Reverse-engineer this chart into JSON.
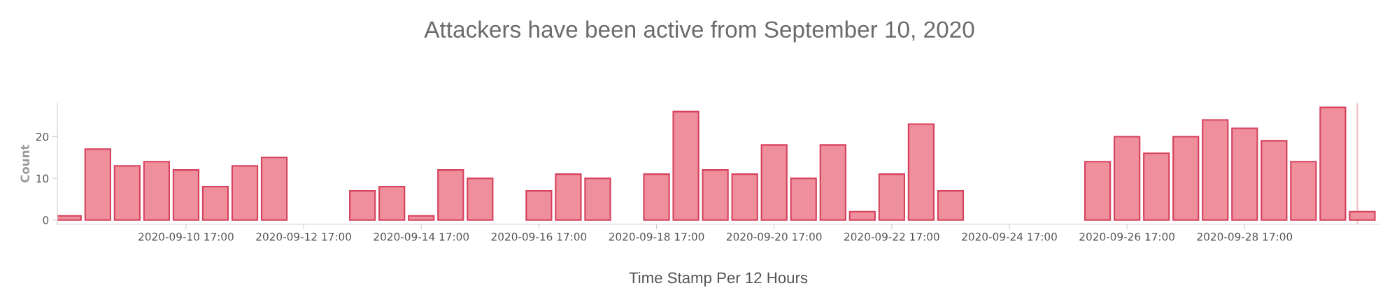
{
  "chart_data": {
    "type": "bar",
    "title": "Attackers have been active from September 10, 2020",
    "xlabel": "Time Stamp Per 12 Hours",
    "ylabel": "Count",
    "x": [
      "2020-09-08T17:00",
      "2020-09-09T05:00",
      "2020-09-09T17:00",
      "2020-09-10T05:00",
      "2020-09-10T17:00",
      "2020-09-11T05:00",
      "2020-09-11T17:00",
      "2020-09-12T05:00",
      "2020-09-12T17:00",
      "2020-09-13T05:00",
      "2020-09-13T17:00",
      "2020-09-14T05:00",
      "2020-09-14T17:00",
      "2020-09-15T05:00",
      "2020-09-15T17:00",
      "2020-09-16T05:00",
      "2020-09-16T17:00",
      "2020-09-17T05:00",
      "2020-09-17T17:00",
      "2020-09-18T05:00",
      "2020-09-18T17:00",
      "2020-09-19T05:00",
      "2020-09-19T17:00",
      "2020-09-20T05:00",
      "2020-09-20T17:00",
      "2020-09-21T05:00",
      "2020-09-21T17:00",
      "2020-09-22T05:00",
      "2020-09-22T17:00",
      "2020-09-23T05:00",
      "2020-09-23T17:00",
      "2020-09-24T05:00",
      "2020-09-24T17:00",
      "2020-09-25T05:00",
      "2020-09-25T17:00",
      "2020-09-26T05:00",
      "2020-09-26T17:00",
      "2020-09-27T05:00",
      "2020-09-27T17:00",
      "2020-09-28T05:00",
      "2020-09-28T17:00",
      "2020-09-29T05:00",
      "2020-09-29T17:00",
      "2020-09-30T05:00",
      "2020-09-30T17:00"
    ],
    "series": [
      {
        "color": "#ee8f9b",
        "values": [
          1,
          17,
          13,
          14,
          12,
          8,
          13,
          15,
          null,
          null,
          7,
          8,
          1,
          12,
          10,
          null,
          7,
          11,
          10,
          null,
          11,
          26,
          12,
          11,
          18,
          10,
          18,
          2,
          11,
          23,
          7,
          null,
          null,
          null,
          null,
          14,
          20,
          16,
          20,
          24,
          22,
          19,
          14,
          27,
          2
        ]
      }
    ],
    "xlim": [
      "2020-09-08T12:30",
      "2020-10-01T00:00"
    ],
    "xticks": [
      {
        "value": "2020-09-10T17:00",
        "label": "2020-09-10 17:00"
      },
      {
        "value": "2020-09-12T17:00",
        "label": "2020-09-12 17:00"
      },
      {
        "value": "2020-09-14T17:00",
        "label": "2020-09-14 17:00"
      },
      {
        "value": "2020-09-16T17:00",
        "label": "2020-09-16 17:00"
      },
      {
        "value": "2020-09-18T17:00",
        "label": "2020-09-18 17:00"
      },
      {
        "value": "2020-09-20T17:00",
        "label": "2020-09-20 17:00"
      },
      {
        "value": "2020-09-22T17:00",
        "label": "2020-09-22 17:00"
      },
      {
        "value": "2020-09-24T17:00",
        "label": "2020-09-24 17:00"
      },
      {
        "value": "2020-09-26T17:00",
        "label": "2020-09-26 17:00"
      },
      {
        "value": "2020-09-28T17:00",
        "label": "2020-09-28 17:00"
      }
    ],
    "ylim": [
      -1,
      28
    ],
    "yticks": [
      0,
      10,
      20
    ],
    "ref_lines": [
      {
        "axis": "x",
        "value": "2020-09-30T15:00",
        "color": "#f2b8c0"
      }
    ],
    "grid": false,
    "legend": false
  }
}
